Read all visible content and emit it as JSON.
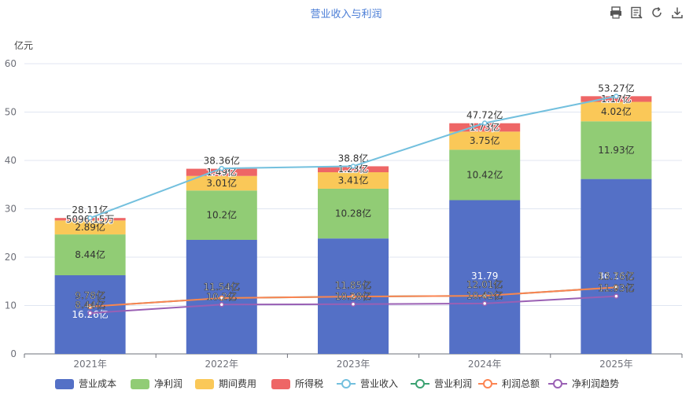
{
  "toolbar": {
    "icons": [
      "print-icon",
      "data-view-icon",
      "refresh-icon",
      "download-icon"
    ]
  },
  "chart_data": {
    "type": "bar",
    "stacked": true,
    "title": "营业收入与利润",
    "unit_label": "亿元",
    "categories": [
      "2021年",
      "2022年",
      "2023年",
      "2024年",
      "2025年"
    ],
    "ylim": [
      0,
      60
    ],
    "yticks": [
      0,
      10,
      20,
      30,
      40,
      50,
      60
    ],
    "grid": true,
    "legend_position": "bottom",
    "colors": {
      "营业成本": "#5470c6",
      "净利润": "#91cc75",
      "期间费用": "#fac858",
      "所得税": "#ee6666",
      "营业收入": "#73c0de",
      "营业利润": "#3ba272",
      "利润总额": "#fc8452",
      "净利润趋势": "#9a60b4"
    },
    "bar_series": [
      {
        "name": "营业成本",
        "values": [
          16.26,
          23.58,
          23.87,
          31.79,
          36.16
        ],
        "labels": [
          "16.26亿",
          "",
          "",
          "",
          ""
        ]
      },
      {
        "name": "净利润",
        "values": [
          8.44,
          10.2,
          10.28,
          10.42,
          11.93
        ],
        "labels": [
          "8.44亿",
          "10.2亿",
          "10.28亿",
          "10.42亿",
          "11.93亿"
        ]
      },
      {
        "name": "期间费用",
        "values": [
          2.89,
          3.01,
          3.41,
          3.75,
          4.02
        ],
        "labels": [
          "2.89亿",
          "3.01亿",
          "3.41亿",
          "3.75亿",
          "4.02亿"
        ]
      },
      {
        "name": "所得税",
        "values": [
          0.5096,
          1.49,
          1.23,
          1.73,
          1.17
        ],
        "labels": [
          "5096.15万",
          "1.49亿",
          "1.23亿",
          "1.73亿",
          "1.17亿"
        ]
      }
    ],
    "total_labels": [
      "28.11亿",
      "38.36亿",
      "38.8亿",
      "47.72亿",
      "53.27亿"
    ],
    "line_series": [
      {
        "name": "营业收入",
        "values": [
          28.11,
          38.36,
          38.8,
          47.72,
          53.27
        ],
        "labels": [
          "",
          "",
          "",
          "",
          ""
        ]
      },
      {
        "name": "营业利润",
        "values": [
          9.78,
          11.54,
          11.85,
          12.01,
          13.76
        ],
        "labels": [
          "9.78亿",
          "11.54亿",
          "11.85亿",
          "12.01亿",
          "13.76亿"
        ]
      },
      {
        "name": "利润总额",
        "values": [
          9.78,
          11.54,
          11.85,
          12.01,
          13.76
        ],
        "labels": [
          "",
          "",
          "",
          "",
          ""
        ]
      },
      {
        "name": "净利润趋势",
        "values": [
          8.44,
          10.2,
          10.28,
          10.42,
          11.93
        ],
        "labels": [
          "8.44亿",
          "10.2亿",
          "10.28亿",
          "10.42亿",
          "11.93亿"
        ]
      }
    ],
    "cost_labels": [
      "",
      "",
      "",
      "31.79",
      "36.16亿"
    ],
    "legend": [
      "营业成本",
      "净利润",
      "期间费用",
      "所得税",
      "营业收入",
      "营业利润",
      "利润总额",
      "净利润趋势"
    ]
  }
}
